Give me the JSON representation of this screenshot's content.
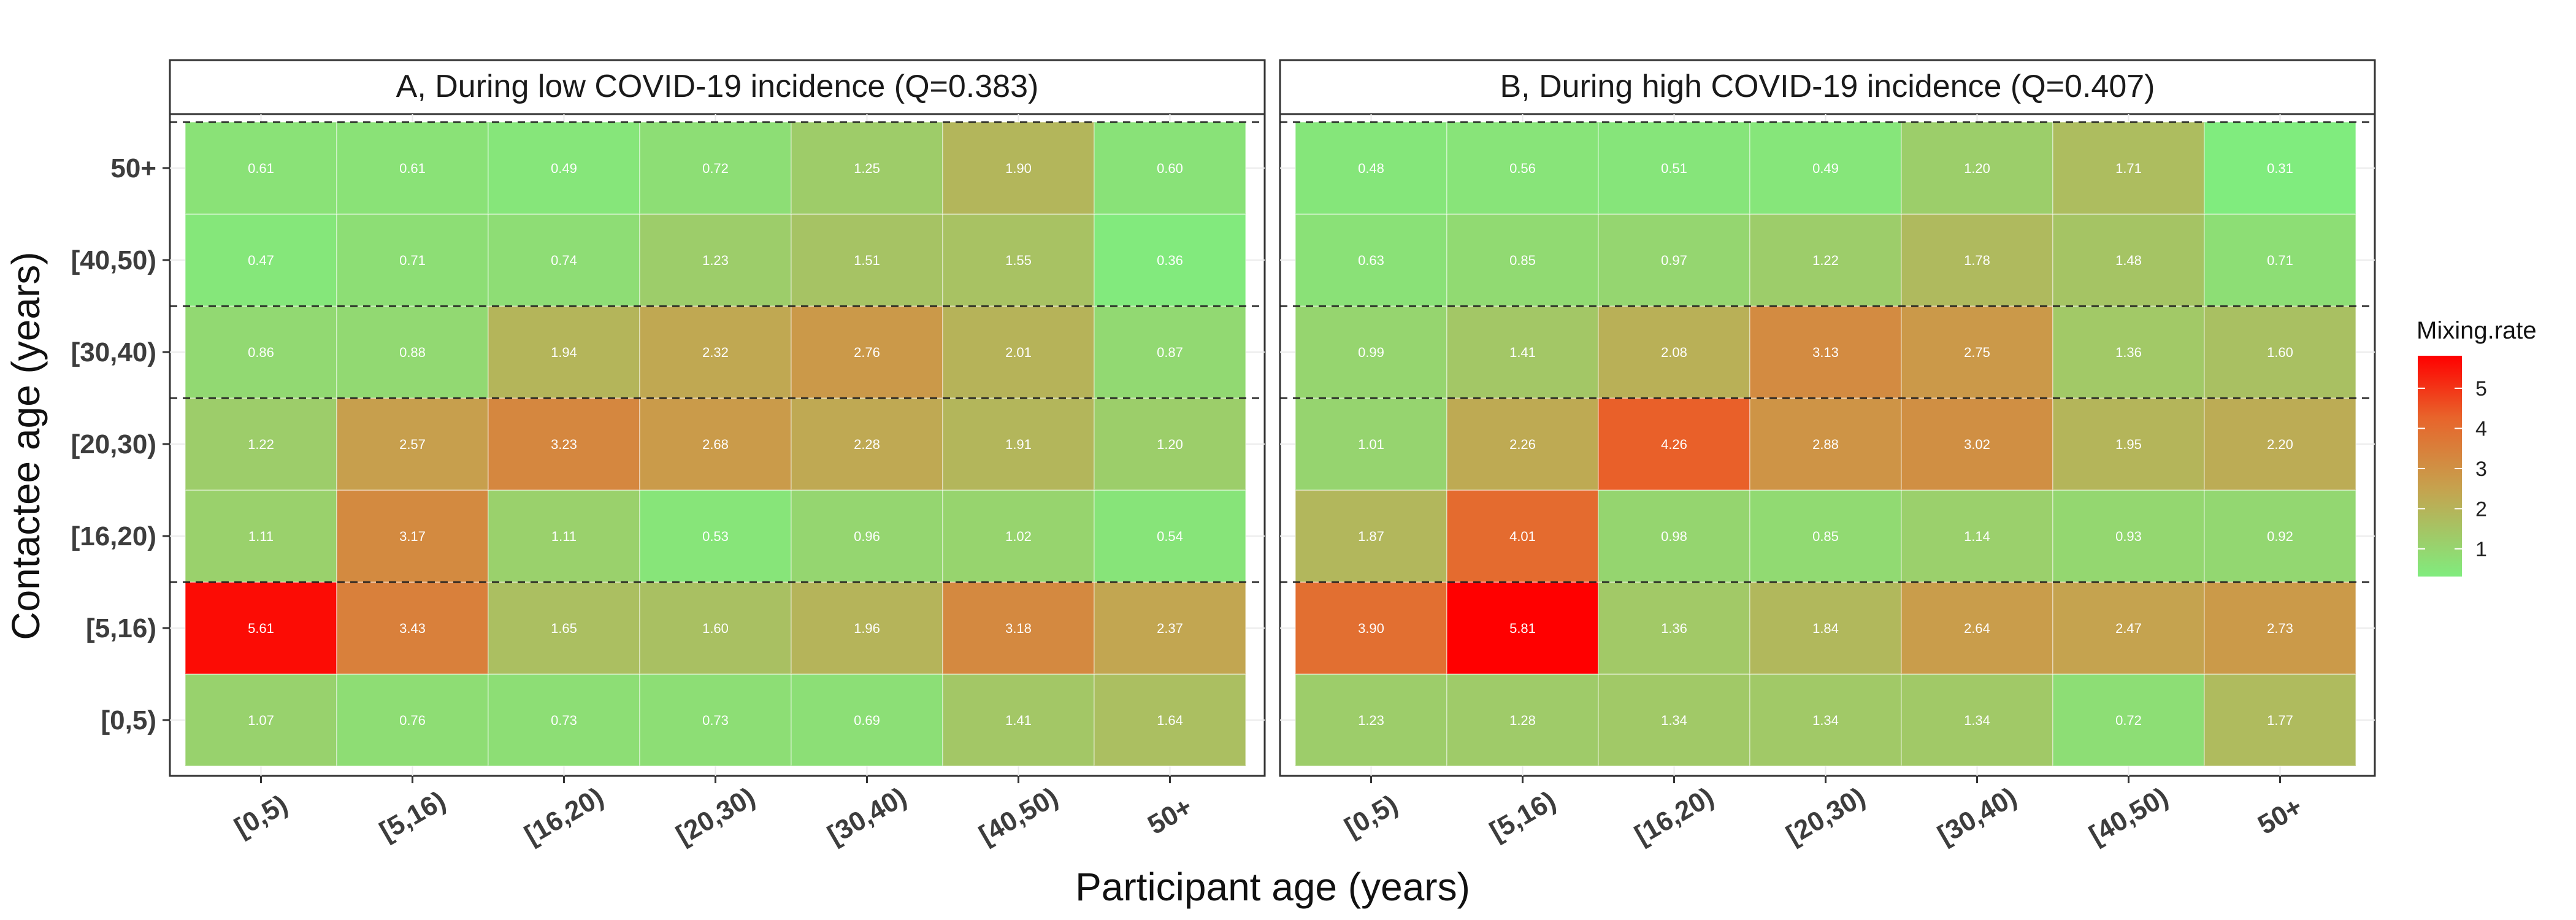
{
  "chart_data": {
    "type": "heatmap",
    "xlabel": "Participant age (years)",
    "ylabel": "Contactee age (years)",
    "x_categories": [
      "[0,5)",
      "[5,16)",
      "[16,20)",
      "[20,30)",
      "[30,40)",
      "[40,50)",
      "50+"
    ],
    "y_categories": [
      "[0,5)",
      "[5,16)",
      "[16,20)",
      "[20,30)",
      "[30,40)",
      "[40,50)",
      "50+"
    ],
    "legend": {
      "title": "Mixing.rate",
      "ticks": [
        1,
        2,
        3,
        4,
        5
      ],
      "range": [
        0.31,
        5.81
      ],
      "colors": {
        "low": "#80EC7E",
        "mid": "#C6A24E",
        "high": "#FF0000"
      },
      "placement": "right"
    },
    "panels": [
      {
        "title": "A, During low COVID-19 incidence (Q=0.383)",
        "values": [
          [
            1.07,
            0.76,
            0.73,
            0.73,
            0.69,
            1.41,
            1.64
          ],
          [
            5.61,
            3.43,
            1.65,
            1.6,
            1.96,
            3.18,
            2.37
          ],
          [
            1.11,
            3.17,
            1.11,
            0.53,
            0.96,
            1.02,
            0.54
          ],
          [
            1.22,
            2.57,
            3.23,
            2.68,
            2.28,
            1.91,
            1.2
          ],
          [
            0.86,
            0.88,
            1.94,
            2.32,
            2.76,
            2.01,
            0.87
          ],
          [
            0.47,
            0.71,
            0.74,
            1.23,
            1.51,
            1.55,
            0.36
          ],
          [
            0.61,
            0.61,
            0.49,
            0.72,
            1.25,
            1.9,
            0.6
          ]
        ]
      },
      {
        "title": "B, During high COVID-19 incidence (Q=0.407)",
        "values": [
          [
            1.23,
            1.28,
            1.34,
            1.34,
            1.34,
            0.72,
            1.77
          ],
          [
            3.9,
            5.81,
            1.36,
            1.84,
            2.64,
            2.47,
            2.73
          ],
          [
            1.87,
            4.01,
            0.98,
            0.85,
            1.14,
            0.93,
            0.92
          ],
          [
            1.01,
            2.26,
            4.26,
            2.88,
            3.02,
            1.95,
            2.2
          ],
          [
            0.99,
            1.41,
            2.08,
            3.13,
            2.75,
            1.36,
            1.6
          ],
          [
            0.63,
            0.85,
            0.97,
            1.22,
            1.78,
            1.48,
            0.71
          ],
          [
            0.48,
            0.56,
            0.51,
            0.49,
            1.2,
            1.71,
            0.31
          ]
        ]
      }
    ],
    "dashed_boundaries_between_y": [
      "[5,16)|[16,20)",
      "[20,30)|[30,40)",
      "[30,40)|[40,50)"
    ],
    "grid": true
  }
}
